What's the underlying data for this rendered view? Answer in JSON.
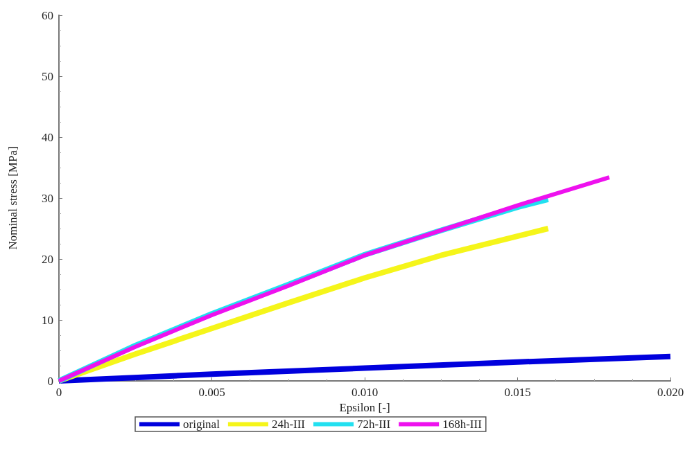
{
  "chart_data": {
    "type": "line",
    "xlabel": "Epsilon [-]",
    "ylabel": "Nominal stress [MPa]",
    "xlim": [
      0,
      0.02
    ],
    "xticks": [
      0,
      0.005,
      {
        "value": 0.01,
        "label": "0.010"
      },
      0.015,
      {
        "value": 0.02,
        "label": "0.020"
      }
    ],
    "ylim": [
      0,
      60
    ],
    "yticks": [
      0,
      10,
      20,
      30,
      40,
      50,
      60
    ],
    "grid": false,
    "legend": "bottom",
    "marker": "none",
    "line_style": "solid",
    "series": [
      {
        "name": "original",
        "color": "#0000dd",
        "x": [
          0,
          0.005,
          0.01,
          0.015,
          0.02
        ],
        "values": [
          0,
          1.1,
          2.1,
          3.1,
          4.0
        ]
      },
      {
        "name": "24h-III",
        "color": "#f5f51a",
        "x": [
          0,
          0.0025,
          0.005,
          0.0075,
          0.01,
          0.0125,
          0.016
        ],
        "values": [
          0,
          4.4,
          8.6,
          12.8,
          16.9,
          20.6,
          25.0
        ]
      },
      {
        "name": "72h-III",
        "color": "#22e0f0",
        "x": [
          0,
          0.0025,
          0.005,
          0.0075,
          0.01,
          0.0125,
          0.015,
          0.016
        ],
        "values": [
          0,
          5.8,
          11.0,
          15.8,
          20.7,
          24.7,
          28.5,
          29.8
        ]
      },
      {
        "name": "168h-III",
        "color": "#ee11ee",
        "x": [
          0,
          0.0025,
          0.005,
          0.0075,
          0.01,
          0.0125,
          0.015,
          0.018
        ],
        "values": [
          0,
          5.6,
          10.8,
          15.6,
          20.6,
          24.7,
          28.8,
          33.4
        ]
      }
    ]
  }
}
